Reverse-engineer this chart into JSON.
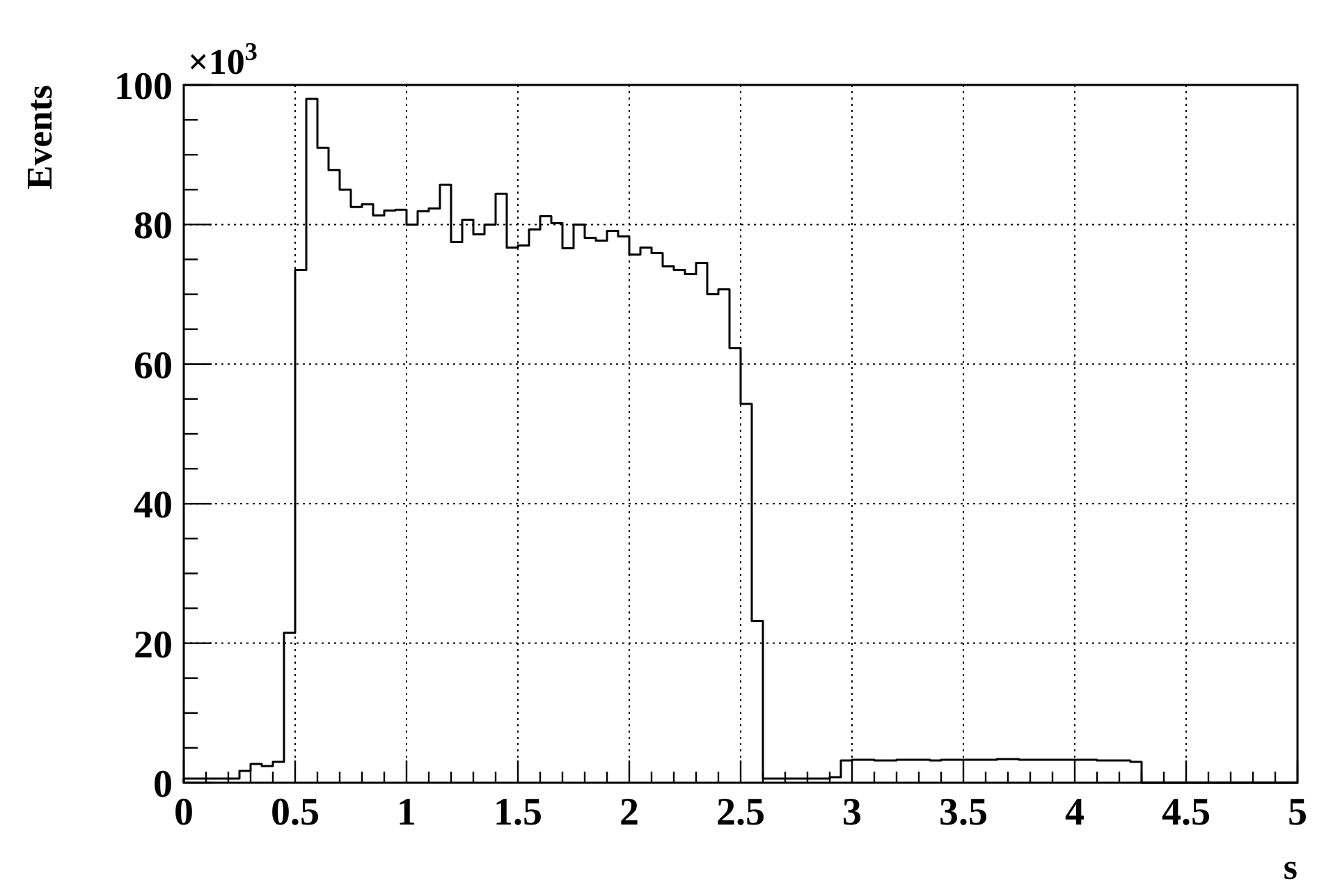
{
  "chart_data": {
    "type": "histogram",
    "ylabel": "Events",
    "xlabel": "s",
    "annotations": [
      "×10$^{3}$"
    ],
    "bins": [
      0,
      0.05,
      0.1,
      0.15,
      0.2,
      0.25,
      0.3,
      0.35,
      0.4,
      0.45,
      0.5,
      0.55,
      0.6,
      0.65,
      0.7,
      0.75,
      0.8,
      0.85,
      0.9,
      0.95,
      1,
      1.05,
      1.1,
      1.15,
      1.2,
      1.25,
      1.3,
      1.35,
      1.4,
      1.45,
      1.5,
      1.55,
      1.6,
      1.65,
      1.7,
      1.75,
      1.8,
      1.85,
      1.9,
      1.95,
      2,
      2.05,
      2.1,
      2.15,
      2.2,
      2.25,
      2.3,
      2.35,
      2.4,
      2.45,
      2.5,
      2.55,
      2.6,
      2.65,
      2.7,
      2.75,
      2.8,
      2.85,
      2.9,
      2.95,
      3,
      3.05,
      3.1,
      3.15,
      3.2,
      3.25,
      3.3,
      3.35,
      3.4,
      3.45,
      3.5,
      3.55,
      3.6,
      3.65,
      3.7,
      3.75,
      3.8,
      3.85,
      3.9,
      3.95,
      4,
      4.05,
      4.1,
      4.15,
      4.2,
      4.25,
      4.3,
      4.35,
      4.4,
      4.45,
      4.5,
      4.55,
      4.6,
      4.65,
      4.7,
      4.75,
      4.8,
      4.85,
      4.9,
      4.95,
      5
    ],
    "values": [
      0.6,
      0.6,
      0.6,
      0.6,
      0.6,
      1.7,
      2.7,
      2.4,
      3.0,
      21.5,
      73.5,
      98,
      91,
      87.8,
      85,
      82.5,
      82.9,
      81.3,
      82,
      82.1,
      80,
      81.9,
      82.3,
      85.7,
      77.5,
      80.7,
      78.6,
      80,
      84.4,
      76.7,
      77,
      79.3,
      81.2,
      80.2,
      76.6,
      80,
      78.1,
      77.7,
      79.1,
      78.3,
      75.7,
      76.7,
      75.9,
      74,
      73.5,
      72.9,
      74.5,
      70,
      70.7,
      62.3,
      54.3,
      23.2,
      0.6,
      0.6,
      0.6,
      0.6,
      0.6,
      0.6,
      0.8,
      3.2,
      3.3,
      3.3,
      3.2,
      3.2,
      3.3,
      3.3,
      3.3,
      3.2,
      3.3,
      3.3,
      3.3,
      3.3,
      3.3,
      3.4,
      3.4,
      3.3,
      3.3,
      3.3,
      3.3,
      3.3,
      3.3,
      3.3,
      3.2,
      3.2,
      3.2,
      3.0,
      0,
      0,
      0,
      0,
      0,
      0,
      0,
      0,
      0,
      0,
      0,
      0,
      0,
      0
    ],
    "color": "#000000",
    "xlim": [
      0,
      5
    ],
    "xticks": [
      0,
      {
        "value": 0.1,
        "label": null
      },
      {
        "value": 0.2,
        "label": null
      },
      {
        "value": 0.3,
        "label": null
      },
      {
        "value": 0.4,
        "label": null
      },
      0.5,
      {
        "value": 0.6,
        "label": null
      },
      {
        "value": 0.7,
        "label": null
      },
      {
        "value": 0.8,
        "label": null
      },
      {
        "value": 0.9,
        "label": null
      },
      1,
      {
        "value": 1.1,
        "label": null
      },
      {
        "value": 1.2,
        "label": null
      },
      {
        "value": 1.3,
        "label": null
      },
      {
        "value": 1.4,
        "label": null
      },
      1.5,
      {
        "value": 1.6,
        "label": null
      },
      {
        "value": 1.7,
        "label": null
      },
      {
        "value": 1.8,
        "label": null
      },
      {
        "value": 1.9,
        "label": null
      },
      2,
      {
        "value": 2.1,
        "label": null
      },
      {
        "value": 2.2,
        "label": null
      },
      {
        "value": 2.3,
        "label": null
      },
      {
        "value": 2.4,
        "label": null
      },
      2.5,
      {
        "value": 2.6,
        "label": null
      },
      {
        "value": 2.7,
        "label": null
      },
      {
        "value": 2.8,
        "label": null
      },
      {
        "value": 2.9,
        "label": null
      },
      3,
      {
        "value": 3.1,
        "label": null
      },
      {
        "value": 3.2,
        "label": null
      },
      {
        "value": 3.3,
        "label": null
      },
      {
        "value": 3.4,
        "label": null
      },
      3.5,
      {
        "value": 3.6,
        "label": null
      },
      {
        "value": 3.7,
        "label": null
      },
      {
        "value": 3.8,
        "label": null
      },
      {
        "value": 3.9,
        "label": null
      },
      4,
      {
        "value": 4.1,
        "label": null
      },
      {
        "value": 4.2,
        "label": null
      },
      {
        "value": 4.3,
        "label": null
      },
      {
        "value": 4.4,
        "label": null
      },
      4.5,
      {
        "value": 4.6,
        "label": null
      },
      {
        "value": 4.7,
        "label": null
      },
      {
        "value": 4.8,
        "label": null
      },
      {
        "value": 4.9,
        "label": null
      },
      5
    ],
    "ylim": [
      0,
      100
    ],
    "yticks": [
      0,
      {
        "value": 5,
        "label": null
      },
      {
        "value": 10,
        "label": null
      },
      {
        "value": 15,
        "label": null
      },
      20,
      {
        "value": 25,
        "label": null
      },
      {
        "value": 30,
        "label": null
      },
      {
        "value": 35,
        "label": null
      },
      40,
      {
        "value": 45,
        "label": null
      },
      {
        "value": 50,
        "label": null
      },
      {
        "value": 55,
        "label": null
      },
      60,
      {
        "value": 65,
        "label": null
      },
      {
        "value": 70,
        "label": null
      },
      {
        "value": 75,
        "label": null
      },
      80,
      {
        "value": 85,
        "label": null
      },
      {
        "value": 90,
        "label": null
      },
      {
        "value": 95,
        "label": null
      },
      100
    ],
    "grid": true
  }
}
